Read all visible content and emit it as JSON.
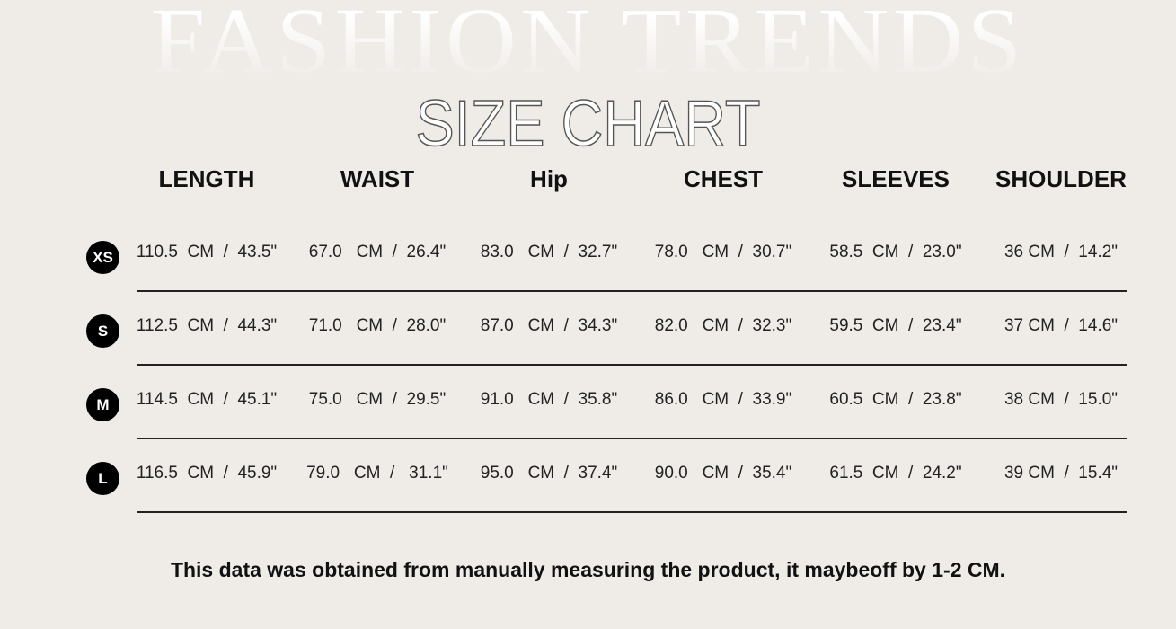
{
  "background_text": "FASHION TRENDS",
  "title": "SIZE CHART",
  "columns": [
    "LENGTH",
    "WAIST",
    "Hip",
    "CHEST",
    "SLEEVES",
    "SHOULDER"
  ],
  "rows": [
    {
      "size": "XS",
      "values": [
        "110.5  CM  /  43.5\"",
        "67.0   CM  /  26.4\"",
        "83.0   CM  /  32.7\"",
        "78.0   CM  /  30.7\"",
        "58.5  CM  /  23.0\"",
        "36 CM  /  14.2\""
      ]
    },
    {
      "size": "S",
      "values": [
        "112.5  CM  /  44.3\"",
        "71.0   CM  /  28.0\"",
        "87.0   CM  /  34.3\"",
        "82.0   CM  /  32.3\"",
        "59.5  CM  /  23.4\"",
        "37 CM  /  14.6\""
      ]
    },
    {
      "size": "M",
      "values": [
        "114.5  CM  /  45.1\"",
        "75.0   CM  /  29.5\"",
        "91.0   CM  /  35.8\"",
        "86.0   CM  /  33.9\"",
        "60.5  CM  /  23.8\"",
        "38 CM  /  15.0\""
      ]
    },
    {
      "size": "L",
      "values": [
        "116.5  CM  /  45.9\"",
        "79.0   CM  /   31.1\"",
        "95.0   CM  /  37.4\"",
        "90.0   CM  /  35.4\"",
        "61.5  CM  /  24.2\"",
        "39 CM  /  15.4\""
      ]
    }
  ],
  "note": "This data was obtained from manually measuring the product, it maybeoff by 1-2 CM."
}
